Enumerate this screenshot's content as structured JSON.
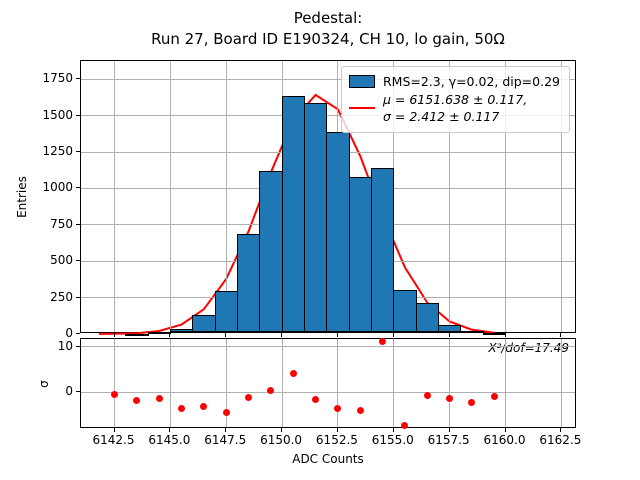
{
  "title": {
    "line1": "Pedestal:",
    "line2": "Run 27, Board ID E190324, CH 10, lo gain, 50Ω"
  },
  "colors": {
    "hist_fill": "#1f77b4",
    "hist_edge": "#000000",
    "fit_line": "#ff0000",
    "residual_dot": "#ff0000",
    "grid": "#b0b0b0"
  },
  "legend": {
    "hist_label": "RMS=2.3, γ=0.02, dip=0.29",
    "fit_label_line1": "μ = 6151.638 ± 0.117,",
    "fit_label_line2": "σ = 2.412 ± 0.117"
  },
  "chart_data": [
    {
      "type": "bar",
      "subtype": "histogram",
      "title": "Pedestal: Run 27, Board ID E190324, CH 10, lo gain, 50Ω",
      "ylabel": "Entries",
      "xlim": [
        6141.0,
        6163.2
      ],
      "ylim": [
        0,
        1875
      ],
      "grid": true,
      "legend_position": "upper right",
      "xtick_values": [
        6142.5,
        6145.0,
        6147.5,
        6150.0,
        6152.5,
        6155.0,
        6157.5,
        6160.0,
        6162.5
      ],
      "xtick_labels": [
        "6142.5",
        "6145.0",
        "6147.5",
        "6150.0",
        "6152.5",
        "6155.0",
        "6157.5",
        "6160.0",
        "6162.5"
      ],
      "ytick_values": [
        0,
        250,
        500,
        750,
        1000,
        1250,
        1500,
        1750
      ],
      "ytick_labels": [
        "0",
        "250",
        "500",
        "750",
        "1000",
        "1250",
        "1500",
        "1750"
      ],
      "bin_width": 1,
      "bins": [
        {
          "left_edge": 6143,
          "count": 3
        },
        {
          "left_edge": 6144,
          "count": 15
        },
        {
          "left_edge": 6145,
          "count": 32
        },
        {
          "left_edge": 6146,
          "count": 130
        },
        {
          "left_edge": 6147,
          "count": 295
        },
        {
          "left_edge": 6148,
          "count": 685
        },
        {
          "left_edge": 6149,
          "count": 1120
        },
        {
          "left_edge": 6150,
          "count": 1635
        },
        {
          "left_edge": 6151,
          "count": 1585
        },
        {
          "left_edge": 6152,
          "count": 1390
        },
        {
          "left_edge": 6153,
          "count": 1080
        },
        {
          "left_edge": 6154,
          "count": 1140
        },
        {
          "left_edge": 6155,
          "count": 305
        },
        {
          "left_edge": 6156,
          "count": 210
        },
        {
          "left_edge": 6157,
          "count": 62
        },
        {
          "left_edge": 6158,
          "count": 18
        },
        {
          "left_edge": 6159,
          "count": 8
        }
      ],
      "fit": {
        "type": "gaussian",
        "mu": 6151.638,
        "mu_err": 0.117,
        "sigma": 2.412,
        "sigma_err": 0.117,
        "amplitude": 1645,
        "x_start": 6141.8,
        "x_end": 6159.5,
        "eval_step": 1.0
      }
    },
    {
      "type": "scatter",
      "subtype": "fit-residuals",
      "ylabel": "σ",
      "xlabel": "ADC Counts",
      "xlim": [
        6141.0,
        6163.2
      ],
      "ylim": [
        -8.1,
        11.7
      ],
      "grid": true,
      "annotation": "X²/dof=17.49",
      "ytick_values": [
        10,
        0
      ],
      "ytick_labels": [
        "10",
        "0"
      ],
      "points": [
        {
          "x": 6142.5,
          "y": -0.4
        },
        {
          "x": 6143.5,
          "y": -1.8
        },
        {
          "x": 6144.5,
          "y": -1.3
        },
        {
          "x": 6145.5,
          "y": -3.6
        },
        {
          "x": 6146.5,
          "y": -3.1
        },
        {
          "x": 6147.5,
          "y": -4.5
        },
        {
          "x": 6148.5,
          "y": -1.2
        },
        {
          "x": 6149.5,
          "y": 0.3
        },
        {
          "x": 6150.5,
          "y": 4.2
        },
        {
          "x": 6151.5,
          "y": -1.6
        },
        {
          "x": 6152.5,
          "y": -3.5
        },
        {
          "x": 6153.5,
          "y": -4.0
        },
        {
          "x": 6154.5,
          "y": 11.2
        },
        {
          "x": 6155.5,
          "y": -7.3
        },
        {
          "x": 6156.5,
          "y": -0.7
        },
        {
          "x": 6157.5,
          "y": -1.3
        },
        {
          "x": 6158.5,
          "y": -2.2
        },
        {
          "x": 6159.5,
          "y": -0.9
        }
      ]
    }
  ]
}
